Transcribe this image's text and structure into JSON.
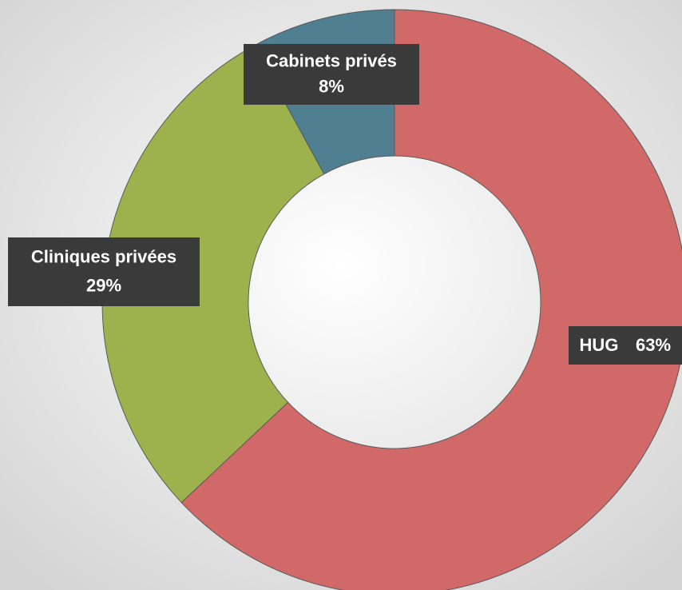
{
  "chart_data": {
    "type": "donut",
    "categories": [
      "HUG",
      "Cliniques privées",
      "Cabinets privés"
    ],
    "values": [
      63,
      29,
      8
    ],
    "value_labels": [
      "63%",
      "29%",
      "8%"
    ],
    "colors": [
      "#d16968",
      "#9db24c",
      "#4f7f91"
    ]
  }
}
